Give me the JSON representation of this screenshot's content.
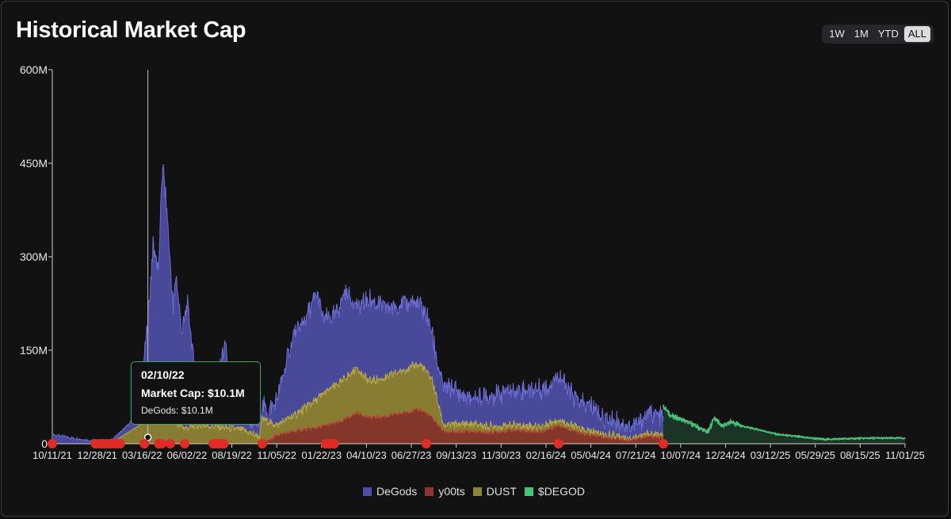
{
  "header": {
    "title": "Historical Market Cap"
  },
  "range_buttons": [
    {
      "label": "1W",
      "active": false
    },
    {
      "label": "1M",
      "active": false
    },
    {
      "label": "YTD",
      "active": false
    },
    {
      "label": "ALL",
      "active": true
    }
  ],
  "tooltip": {
    "date": "02/10/22",
    "market_cap": "Market Cap: $10.1M",
    "row": "DeGods: $10.1M"
  },
  "colors": {
    "degods": "#4e4ea6",
    "y00ts": "#8a3a2c",
    "dust": "#8f8335",
    "degod_token": "#46c27a",
    "event_dot": "#e02c25"
  },
  "chart_data": {
    "type": "area",
    "stacked": true,
    "title": "Historical Market Cap",
    "xlabel": "",
    "ylabel": "",
    "ylim": [
      0,
      600
    ],
    "y_unit": "M",
    "y_ticks": [
      "0",
      "150M",
      "300M",
      "450M",
      "600M"
    ],
    "y_tick_values": [
      0,
      150,
      300,
      450,
      600
    ],
    "x_range": [
      0,
      1482
    ],
    "x_ticks": [
      "10/11/21",
      "12/28/21",
      "03/16/22",
      "06/02/22",
      "08/19/22",
      "11/05/22",
      "01/22/23",
      "04/10/23",
      "06/27/23",
      "09/13/23",
      "11/30/23",
      "02/16/24",
      "05/04/24",
      "07/21/24",
      "10/07/24",
      "12/24/24",
      "03/12/25",
      "05/29/25",
      "08/15/25",
      "11/01/25"
    ],
    "x_tick_days": [
      0,
      78,
      156,
      234,
      312,
      390,
      468,
      546,
      624,
      702,
      780,
      858,
      936,
      1014,
      1092,
      1170,
      1248,
      1326,
      1404,
      1482
    ],
    "grid": false,
    "legend_position": "bottom-center",
    "series": [
      {
        "name": "y00ts",
        "x": [
          0,
          50,
          100,
          170,
          200,
          250,
          300,
          350,
          365,
          390,
          420,
          460,
          500,
          530,
          550,
          580,
          600,
          620,
          640,
          660,
          680,
          700,
          720,
          760,
          800,
          850,
          880,
          920,
          950,
          1000,
          1040,
          1060,
          1062
        ],
        "values": [
          0,
          0,
          0,
          0,
          0,
          0,
          0,
          0,
          0,
          14,
          20,
          26,
          35,
          50,
          42,
          44,
          48,
          52,
          55,
          42,
          20,
          18,
          20,
          18,
          22,
          19,
          30,
          16,
          12,
          6,
          12,
          10,
          10
        ]
      },
      {
        "name": "DUST",
        "x": [
          0,
          50,
          100,
          170,
          190,
          200,
          210,
          230,
          260,
          300,
          330,
          360,
          365,
          390,
          420,
          460,
          480,
          500,
          530,
          550,
          580,
          600,
          620,
          640,
          660,
          680,
          700,
          720,
          760,
          800,
          850,
          880,
          920,
          950,
          1000,
          1040,
          1060,
          1062
        ],
        "values": [
          0,
          0,
          0,
          40,
          110,
          60,
          35,
          25,
          30,
          26,
          22,
          12,
          40,
          16,
          25,
          45,
          55,
          62,
          72,
          58,
          62,
          66,
          70,
          72,
          60,
          10,
          12,
          12,
          10,
          8,
          9,
          10,
          6,
          5,
          4,
          4,
          3,
          3
        ]
      },
      {
        "name": "DeGods",
        "x": [
          0,
          30,
          60,
          100,
          126,
          150,
          165,
          175,
          185,
          192,
          200,
          210,
          215,
          225,
          235,
          245,
          255,
          265,
          275,
          285,
          290,
          300,
          310,
          320,
          340,
          360,
          365,
          375,
          390,
          420,
          440,
          460,
          470,
          490,
          510,
          530,
          550,
          570,
          590,
          610,
          630,
          650,
          670,
          680,
          700,
          720,
          740,
          760,
          780,
          800,
          830,
          860,
          880,
          900,
          920,
          940,
          960,
          980,
          1000,
          1020,
          1040,
          1050,
          1060,
          1062
        ],
        "values": [
          15,
          10,
          6,
          3,
          10,
          20,
          150,
          260,
          190,
          350,
          300,
          180,
          240,
          150,
          200,
          110,
          60,
          40,
          30,
          60,
          95,
          130,
          70,
          50,
          20,
          20,
          22,
          15,
          40,
          130,
          140,
          170,
          120,
          110,
          140,
          100,
          130,
          120,
          105,
          110,
          100,
          90,
          60,
          60,
          55,
          40,
          45,
          50,
          55,
          55,
          60,
          60,
          75,
          50,
          40,
          40,
          25,
          25,
          20,
          20,
          35,
          30,
          30,
          30
        ]
      },
      {
        "name": "$DEGOD",
        "x": [
          1062,
          1075,
          1090,
          1110,
          1125,
          1140,
          1150,
          1165,
          1180,
          1200,
          1230,
          1260,
          1300,
          1340,
          1380,
          1420,
          1460,
          1482
        ],
        "values": [
          60,
          45,
          40,
          32,
          25,
          18,
          42,
          28,
          35,
          28,
          22,
          15,
          11,
          7,
          8,
          9,
          9,
          9
        ]
      }
    ],
    "event_marker_days": [
      0,
      75,
      82,
      88,
      94,
      100,
      106,
      112,
      118,
      160,
      185,
      190,
      205,
      230,
      280,
      286,
      292,
      298,
      365,
      475,
      482,
      490,
      650,
      880,
      1062
    ],
    "hover_day": 122,
    "hover_cursor_day": 110
  }
}
